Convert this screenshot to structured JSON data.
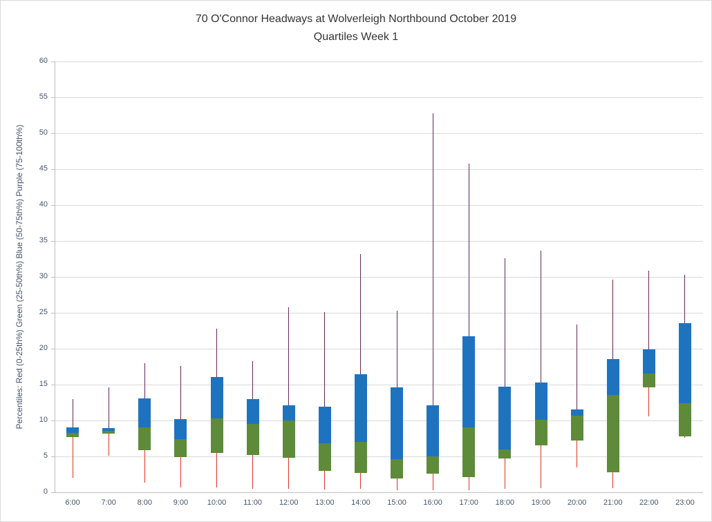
{
  "chart_data": {
    "type": "boxplot",
    "title": "70 O'Connor Headways at Wolverleigh Northbound October 2019",
    "subtitle": "Quartiles Week 1",
    "ylabel": "Percentiles:  Red (0-25th%)  Green (25-50th%)  Blue (50-75th%)  Purple (75-100th%)",
    "xlabel": "",
    "ylim": [
      0,
      60
    ],
    "ytick_step": 5,
    "yticks": [
      0,
      5,
      10,
      15,
      20,
      25,
      30,
      35,
      40,
      45,
      50,
      55,
      60
    ],
    "grid": true,
    "legend_position": "none",
    "categories": [
      "6:00",
      "7:00",
      "8:00",
      "9:00",
      "10:00",
      "11:00",
      "12:00",
      "13:00",
      "14:00",
      "15:00",
      "16:00",
      "17:00",
      "18:00",
      "19:00",
      "20:00",
      "21:00",
      "22:00",
      "23:00"
    ],
    "series": [
      {
        "hour": "6:00",
        "low": 2.0,
        "q1": 7.7,
        "median": 8.3,
        "q3": 9.0,
        "high": 13.0
      },
      {
        "hour": "7:00",
        "low": 5.1,
        "q1": 8.2,
        "median": 8.6,
        "q3": 8.9,
        "high": 14.6
      },
      {
        "hour": "8:00",
        "low": 1.3,
        "q1": 5.9,
        "median": 9.0,
        "q3": 13.1,
        "high": 18.0
      },
      {
        "hour": "9:00",
        "low": 0.7,
        "q1": 4.9,
        "median": 7.4,
        "q3": 10.2,
        "high": 17.6
      },
      {
        "hour": "10:00",
        "low": 0.7,
        "q1": 5.5,
        "median": 10.3,
        "q3": 16.1,
        "high": 22.8
      },
      {
        "hour": "11:00",
        "low": 0.5,
        "q1": 5.2,
        "median": 9.5,
        "q3": 13.0,
        "high": 18.3
      },
      {
        "hour": "12:00",
        "low": 0.5,
        "q1": 4.8,
        "median": 10.0,
        "q3": 12.1,
        "high": 25.8
      },
      {
        "hour": "13:00",
        "low": 0.4,
        "q1": 3.0,
        "median": 6.8,
        "q3": 11.9,
        "high": 25.1
      },
      {
        "hour": "14:00",
        "low": 0.5,
        "q1": 2.7,
        "median": 7.0,
        "q3": 16.4,
        "high": 33.2
      },
      {
        "hour": "15:00",
        "low": 0.3,
        "q1": 1.9,
        "median": 4.6,
        "q3": 14.6,
        "high": 25.3
      },
      {
        "hour": "16:00",
        "low": 0.3,
        "q1": 2.6,
        "median": 5.0,
        "q3": 12.1,
        "high": 52.8
      },
      {
        "hour": "17:00",
        "low": 0.3,
        "q1": 2.1,
        "median": 9.0,
        "q3": 21.7,
        "high": 45.8
      },
      {
        "hour": "18:00",
        "low": 0.5,
        "q1": 4.7,
        "median": 6.0,
        "q3": 14.7,
        "high": 32.6
      },
      {
        "hour": "19:00",
        "low": 0.6,
        "q1": 6.5,
        "median": 10.1,
        "q3": 15.3,
        "high": 33.7
      },
      {
        "hour": "20:00",
        "low": 3.5,
        "q1": 7.2,
        "median": 10.7,
        "q3": 11.5,
        "high": 23.4
      },
      {
        "hour": "21:00",
        "low": 0.6,
        "q1": 2.8,
        "median": 13.6,
        "q3": 18.6,
        "high": 29.6
      },
      {
        "hour": "22:00",
        "low": 10.6,
        "q1": 14.6,
        "median": 16.5,
        "q3": 19.9,
        "high": 30.9
      },
      {
        "hour": "23:00",
        "low": 7.6,
        "q1": 7.8,
        "median": 12.4,
        "q3": 23.6,
        "high": 30.3
      }
    ],
    "colors": {
      "whisker_low_red": "#e03024",
      "box_25_50_green": "#5e8b3a",
      "box_50_75_blue": "#1e73be",
      "whisker_high_purple": "#602756",
      "gridline": "#d9d9d9",
      "axis": "#bfbfbf",
      "tick_text": "#44546a",
      "title_text": "#333333"
    }
  }
}
